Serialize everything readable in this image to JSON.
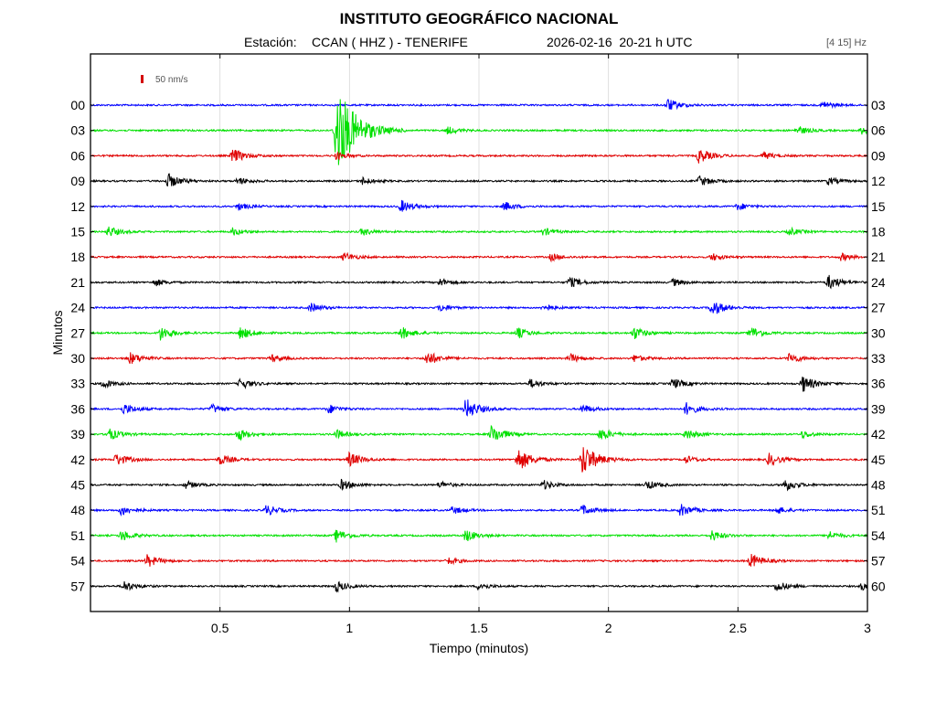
{
  "chart_data": {
    "type": "line",
    "title": "INSTITUTO GEOGRÁFICO NACIONAL",
    "station_label": "Estación:",
    "station": "CCAN ( HHZ ) - TENERIFE",
    "date_time": "2026-02-16  20-21 h UTC",
    "filter_band": "[4 15] Hz",
    "scale_label": "50 nm/s",
    "scale_color": "#d40000",
    "xlabel": "Tiempo (minutos)",
    "ylabel": "Minutos",
    "xlim": [
      0,
      3
    ],
    "x_ticks": [
      0.5,
      1,
      1.5,
      2,
      2.5,
      3
    ],
    "x_tick_labels": [
      "0.5",
      "1",
      "1.5",
      "2",
      "2.5",
      "3"
    ],
    "grid": true,
    "trace_colors": [
      "#0000ff",
      "#00e000",
      "#e00000",
      "#000000"
    ],
    "traces": [
      {
        "left_label": "00",
        "right_label": "03",
        "color": "#0000ff",
        "bursts": [
          [
            2.23,
            1.3
          ],
          [
            2.83,
            1.0
          ]
        ]
      },
      {
        "left_label": "03",
        "right_label": "06",
        "color": "#00e000",
        "bursts": [
          [
            0.95,
            3.6
          ],
          [
            1.38,
            1.0
          ],
          [
            2.73,
            1.1
          ],
          [
            2.98,
            1.0
          ]
        ]
      },
      {
        "left_label": "06",
        "right_label": "09",
        "color": "#e00000",
        "bursts": [
          [
            0.55,
            1.4
          ],
          [
            0.95,
            1.0
          ],
          [
            2.35,
            1.4
          ],
          [
            2.6,
            1.0
          ]
        ]
      },
      {
        "left_label": "09",
        "right_label": "12",
        "color": "#000000",
        "bursts": [
          [
            0.3,
            1.4
          ],
          [
            0.57,
            1.0
          ],
          [
            1.05,
            1.0
          ],
          [
            2.35,
            1.2
          ],
          [
            2.85,
            1.0
          ]
        ]
      },
      {
        "left_label": "12",
        "right_label": "15",
        "color": "#0000ff",
        "bursts": [
          [
            0.57,
            1.0
          ],
          [
            1.2,
            1.3
          ],
          [
            1.6,
            1.1
          ],
          [
            2.5,
            1.0
          ]
        ]
      },
      {
        "left_label": "15",
        "right_label": "18",
        "color": "#00e000",
        "bursts": [
          [
            0.07,
            1.2
          ],
          [
            0.55,
            1.0
          ],
          [
            1.05,
            1.0
          ],
          [
            1.75,
            1.0
          ],
          [
            2.7,
            1.0
          ]
        ]
      },
      {
        "left_label": "18",
        "right_label": "21",
        "color": "#e00000",
        "bursts": [
          [
            0.98,
            1.1
          ],
          [
            1.78,
            1.0
          ],
          [
            2.4,
            1.0
          ],
          [
            2.9,
            1.0
          ]
        ]
      },
      {
        "left_label": "21",
        "right_label": "24",
        "color": "#000000",
        "bursts": [
          [
            0.25,
            1.0
          ],
          [
            1.35,
            1.0
          ],
          [
            1.85,
            1.2
          ],
          [
            2.25,
            1.0
          ],
          [
            2.85,
            1.4
          ]
        ]
      },
      {
        "left_label": "24",
        "right_label": "27",
        "color": "#0000ff",
        "bursts": [
          [
            0.85,
            1.1
          ],
          [
            1.35,
            1.0
          ],
          [
            1.75,
            1.0
          ],
          [
            2.4,
            1.5
          ]
        ]
      },
      {
        "left_label": "27",
        "right_label": "30",
        "color": "#00e000",
        "bursts": [
          [
            0.27,
            1.4
          ],
          [
            0.58,
            1.3
          ],
          [
            1.2,
            1.3
          ],
          [
            1.65,
            1.2
          ],
          [
            2.1,
            1.3
          ],
          [
            2.55,
            1.3
          ]
        ]
      },
      {
        "left_label": "30",
        "right_label": "33",
        "color": "#e00000",
        "bursts": [
          [
            0.15,
            1.3
          ],
          [
            0.7,
            1.0
          ],
          [
            1.3,
            1.4
          ],
          [
            1.85,
            1.1
          ],
          [
            2.1,
            1.0
          ],
          [
            2.7,
            1.2
          ]
        ]
      },
      {
        "left_label": "33",
        "right_label": "36",
        "color": "#000000",
        "bursts": [
          [
            0.05,
            1.1
          ],
          [
            0.58,
            1.2
          ],
          [
            1.7,
            1.1
          ],
          [
            2.25,
            1.2
          ],
          [
            2.75,
            1.5
          ]
        ]
      },
      {
        "left_label": "36",
        "right_label": "39",
        "color": "#0000ff",
        "bursts": [
          [
            0.13,
            1.2
          ],
          [
            0.47,
            1.1
          ],
          [
            0.92,
            1.1
          ],
          [
            1.45,
            1.7
          ],
          [
            1.9,
            1.1
          ],
          [
            2.3,
            1.3
          ]
        ]
      },
      {
        "left_label": "39",
        "right_label": "42",
        "color": "#00e000",
        "bursts": [
          [
            0.07,
            1.3
          ],
          [
            0.57,
            1.3
          ],
          [
            0.95,
            1.1
          ],
          [
            1.55,
            1.6
          ],
          [
            1.97,
            1.3
          ],
          [
            2.3,
            1.2
          ],
          [
            2.75,
            1.0
          ]
        ]
      },
      {
        "left_label": "42",
        "right_label": "45",
        "color": "#e00000",
        "bursts": [
          [
            0.1,
            1.3
          ],
          [
            0.5,
            1.2
          ],
          [
            1.0,
            1.4
          ],
          [
            1.65,
            1.8
          ],
          [
            1.9,
            2.1
          ],
          [
            2.3,
            1.0
          ],
          [
            2.62,
            1.3
          ]
        ]
      },
      {
        "left_label": "45",
        "right_label": "48",
        "color": "#000000",
        "bursts": [
          [
            0.37,
            1.0
          ],
          [
            0.97,
            1.2
          ],
          [
            1.35,
            1.0
          ],
          [
            1.75,
            1.1
          ],
          [
            2.15,
            1.1
          ],
          [
            2.68,
            1.3
          ]
        ]
      },
      {
        "left_label": "48",
        "right_label": "51",
        "color": "#0000ff",
        "bursts": [
          [
            0.12,
            1.2
          ],
          [
            0.68,
            1.2
          ],
          [
            1.4,
            1.0
          ],
          [
            1.9,
            1.2
          ],
          [
            2.28,
            1.3
          ],
          [
            2.65,
            1.0
          ]
        ]
      },
      {
        "left_label": "51",
        "right_label": "54",
        "color": "#00e000",
        "bursts": [
          [
            0.12,
            1.2
          ],
          [
            0.95,
            1.3
          ],
          [
            1.45,
            1.3
          ],
          [
            2.4,
            1.2
          ],
          [
            2.85,
            1.1
          ]
        ]
      },
      {
        "left_label": "54",
        "right_label": "57",
        "color": "#e00000",
        "bursts": [
          [
            0.22,
            1.3
          ],
          [
            1.38,
            1.0
          ],
          [
            2.55,
            1.4
          ]
        ]
      },
      {
        "left_label": "57",
        "right_label": "60",
        "color": "#000000",
        "bursts": [
          [
            0.13,
            1.2
          ],
          [
            0.95,
            1.2
          ],
          [
            1.5,
            1.0
          ],
          [
            2.65,
            1.2
          ],
          [
            2.98,
            1.0
          ]
        ]
      }
    ]
  }
}
